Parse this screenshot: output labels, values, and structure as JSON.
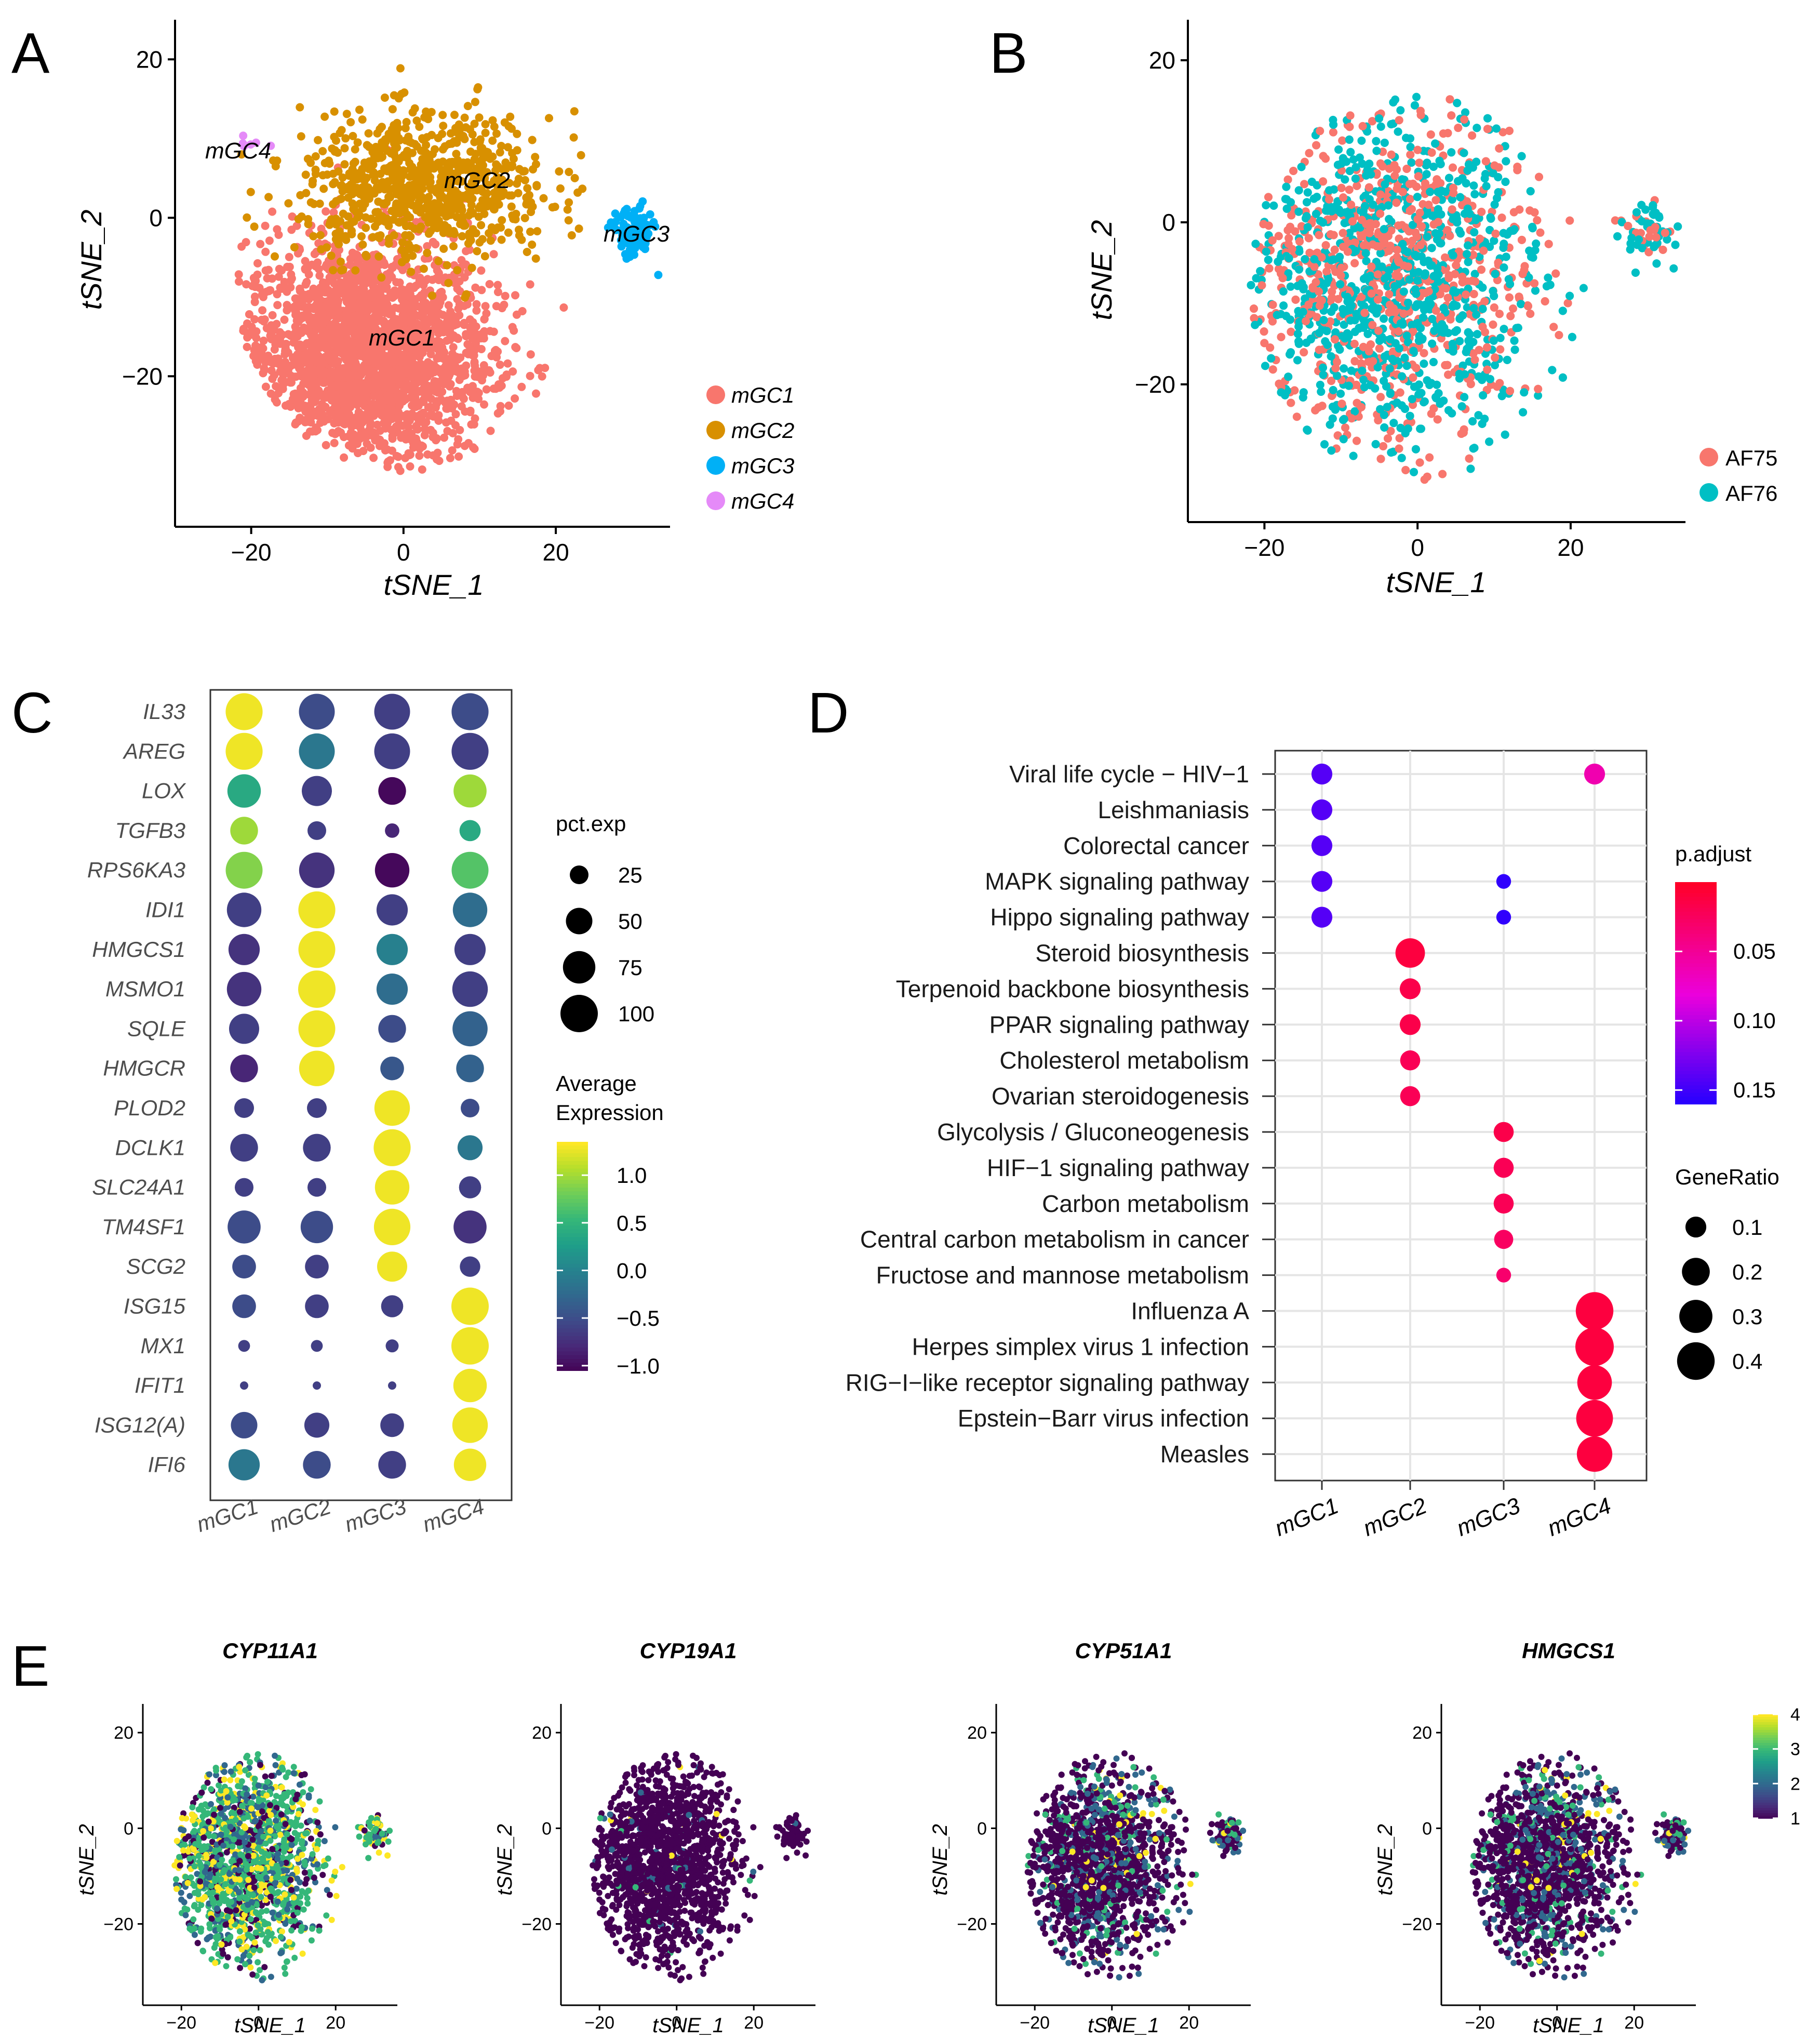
{
  "figure": {
    "panels": [
      "A",
      "B",
      "C",
      "D",
      "E"
    ]
  },
  "chart_data": [
    {
      "id": "A",
      "type": "scatter",
      "title": "",
      "xlabel": "tSNE_1",
      "ylabel": "tSNE_2",
      "xlim": [
        -30,
        35
      ],
      "ylim": [
        -39,
        25
      ],
      "xticks": [
        -20,
        0,
        20
      ],
      "yticks": [
        20,
        0,
        -20
      ],
      "series": [
        {
          "name": "mGC1",
          "color": "#F8766D",
          "center": [
            -5,
            -17
          ],
          "spread": [
            11,
            9.5
          ],
          "n": 2200
        },
        {
          "name": "mGC2",
          "color": "#D89000",
          "center": [
            3,
            4
          ],
          "spread": [
            11,
            6
          ],
          "n": 800
        },
        {
          "name": "mGC3",
          "color": "#00B0F6",
          "center": [
            30,
            -2
          ],
          "spread": [
            1.8,
            2.3
          ],
          "n": 90
        },
        {
          "name": "mGC4",
          "color": "#E58AF8",
          "center": [
            -20,
            9.5
          ],
          "spread": [
            0.8,
            0.6
          ],
          "n": 6
        }
      ],
      "annotations": [
        {
          "text": "mGC4",
          "x": -22,
          "y": 9.5
        },
        {
          "text": "mGC2",
          "x": 10,
          "y": 6
        },
        {
          "text": "mGC3",
          "x": 30,
          "y": -1
        },
        {
          "text": "mGC1",
          "x": 0,
          "y": -14.5
        }
      ],
      "legend": [
        "mGC1",
        "mGC2",
        "mGC3",
        "mGC4"
      ]
    },
    {
      "id": "B",
      "type": "scatter",
      "xlabel": "tSNE_1",
      "ylabel": "tSNE_2",
      "xlim": [
        -30,
        35
      ],
      "ylim": [
        -37,
        25
      ],
      "xticks": [
        -20,
        0,
        20
      ],
      "yticks": [
        20,
        0,
        -20
      ],
      "series": [
        {
          "name": "AF75",
          "color": "#F8766D"
        },
        {
          "name": "AF76",
          "color": "#00BFC4"
        }
      ],
      "legend": [
        "AF75",
        "AF76"
      ]
    },
    {
      "id": "C",
      "type": "scatter",
      "subtype": "dotplot",
      "genes": [
        "IL33",
        "AREG",
        "LOX",
        "TGFB3",
        "RPS6KA3",
        "IDI1",
        "HMGCS1",
        "MSMO1",
        "SQLE",
        "HMGCR",
        "PLOD2",
        "DCLK1",
        "SLC24A1",
        "TM4SF1",
        "SCG2",
        "ISG15",
        "MX1",
        "IFIT1",
        "ISG12(A)",
        "IFI6"
      ],
      "clusters": [
        "mGC1",
        "mGC2",
        "mGC3",
        "mGC4"
      ],
      "avg_expression": [
        [
          1.3,
          -0.5,
          -0.6,
          -0.5
        ],
        [
          1.3,
          -0.1,
          -0.6,
          -0.6
        ],
        [
          0.4,
          -0.6,
          -1.0,
          1.0
        ],
        [
          1.0,
          -0.6,
          -0.8,
          0.4
        ],
        [
          0.9,
          -0.7,
          -1.0,
          0.7
        ],
        [
          -0.6,
          1.3,
          -0.6,
          -0.2
        ],
        [
          -0.7,
          1.3,
          0.0,
          -0.6
        ],
        [
          -0.7,
          1.3,
          -0.2,
          -0.6
        ],
        [
          -0.6,
          1.3,
          -0.5,
          -0.3
        ],
        [
          -0.8,
          1.3,
          -0.4,
          -0.3
        ],
        [
          -0.6,
          -0.6,
          1.3,
          -0.5
        ],
        [
          -0.6,
          -0.6,
          1.3,
          -0.1
        ],
        [
          -0.6,
          -0.6,
          1.3,
          -0.6
        ],
        [
          -0.5,
          -0.5,
          1.3,
          -0.7
        ],
        [
          -0.5,
          -0.6,
          1.3,
          -0.6
        ],
        [
          -0.5,
          -0.6,
          -0.6,
          1.3
        ],
        [
          -0.6,
          -0.6,
          -0.6,
          1.3
        ],
        [
          -0.6,
          -0.6,
          -0.6,
          1.3
        ],
        [
          -0.5,
          -0.6,
          -0.6,
          1.3
        ],
        [
          -0.1,
          -0.5,
          -0.6,
          1.3
        ]
      ],
      "pct_exp": [
        [
          98,
          92,
          92,
          98
        ],
        [
          98,
          92,
          92,
          98
        ],
        [
          80,
          65,
          55,
          78
        ],
        [
          55,
          25,
          15,
          32
        ],
        [
          97,
          90,
          85,
          97
        ],
        [
          85,
          98,
          70,
          85
        ],
        [
          70,
          97,
          70,
          70
        ],
        [
          85,
          100,
          70,
          90
        ],
        [
          65,
          97,
          55,
          88
        ],
        [
          55,
          90,
          40,
          55
        ],
        [
          28,
          28,
          90,
          25
        ],
        [
          55,
          55,
          98,
          45
        ],
        [
          25,
          25,
          85,
          35
        ],
        [
          78,
          75,
          95,
          78
        ],
        [
          40,
          40,
          65,
          30
        ],
        [
          40,
          40,
          35,
          100
        ],
        [
          10,
          10,
          12,
          100
        ],
        [
          5,
          5,
          5,
          80
        ],
        [
          50,
          45,
          40,
          90
        ],
        [
          70,
          55,
          55,
          75
        ]
      ],
      "size_legend_title": "pct.exp",
      "size_legend": [
        25,
        50,
        75,
        100
      ],
      "color_legend_title": [
        "Average",
        "Expression"
      ],
      "color_legend_ticks": [
        1.0,
        0.5,
        0.0,
        -0.5,
        -1.0
      ],
      "color_legend_labels": [
        "1.0",
        "0.5",
        "0.0",
        "−0.5",
        "−1.0"
      ],
      "color_range": [
        -1.05,
        1.35
      ]
    },
    {
      "id": "D",
      "type": "scatter",
      "subtype": "dotplot",
      "pathways": [
        "Viral life cycle − HIV−1",
        "Leishmaniasis",
        "Colorectal cancer",
        "MAPK signaling pathway",
        "Hippo signaling pathway",
        "Steroid biosynthesis",
        "Terpenoid backbone biosynthesis",
        "PPAR signaling pathway",
        "Cholesterol metabolism",
        "Ovarian steroidogenesis",
        "Glycolysis / Gluconeogenesis",
        "HIF−1 signaling pathway",
        "Carbon metabolism",
        "Central carbon metabolism in cancer",
        "Fructose and mannose metabolism",
        "Influenza A",
        "Herpes simplex virus 1 infection",
        "RIG−I−like receptor signaling pathway",
        "Epstein−Barr virus infection",
        "Measles"
      ],
      "clusters": [
        "mGC1",
        "mGC2",
        "mGC3",
        "mGC4"
      ],
      "points": [
        {
          "pathway": 0,
          "cluster": 0,
          "gene_ratio": 0.1,
          "p_adjust": 0.14
        },
        {
          "pathway": 0,
          "cluster": 3,
          "gene_ratio": 0.1,
          "p_adjust": 0.06
        },
        {
          "pathway": 1,
          "cluster": 0,
          "gene_ratio": 0.1,
          "p_adjust": 0.14
        },
        {
          "pathway": 2,
          "cluster": 0,
          "gene_ratio": 0.1,
          "p_adjust": 0.14
        },
        {
          "pathway": 3,
          "cluster": 0,
          "gene_ratio": 0.1,
          "p_adjust": 0.14
        },
        {
          "pathway": 3,
          "cluster": 2,
          "gene_ratio": 0.04,
          "p_adjust": 0.155
        },
        {
          "pathway": 4,
          "cluster": 0,
          "gene_ratio": 0.1,
          "p_adjust": 0.14
        },
        {
          "pathway": 4,
          "cluster": 2,
          "gene_ratio": 0.04,
          "p_adjust": 0.155
        },
        {
          "pathway": 5,
          "cluster": 1,
          "gene_ratio": 0.23,
          "p_adjust": 0.01
        },
        {
          "pathway": 6,
          "cluster": 1,
          "gene_ratio": 0.1,
          "p_adjust": 0.015
        },
        {
          "pathway": 7,
          "cluster": 1,
          "gene_ratio": 0.1,
          "p_adjust": 0.015
        },
        {
          "pathway": 8,
          "cluster": 1,
          "gene_ratio": 0.09,
          "p_adjust": 0.02
        },
        {
          "pathway": 9,
          "cluster": 1,
          "gene_ratio": 0.09,
          "p_adjust": 0.02
        },
        {
          "pathway": 10,
          "cluster": 2,
          "gene_ratio": 0.09,
          "p_adjust": 0.015
        },
        {
          "pathway": 11,
          "cluster": 2,
          "gene_ratio": 0.09,
          "p_adjust": 0.02
        },
        {
          "pathway": 12,
          "cluster": 2,
          "gene_ratio": 0.09,
          "p_adjust": 0.02
        },
        {
          "pathway": 13,
          "cluster": 2,
          "gene_ratio": 0.08,
          "p_adjust": 0.025
        },
        {
          "pathway": 14,
          "cluster": 2,
          "gene_ratio": 0.04,
          "p_adjust": 0.03
        },
        {
          "pathway": 15,
          "cluster": 3,
          "gene_ratio": 0.4,
          "p_adjust": 0.01
        },
        {
          "pathway": 16,
          "cluster": 3,
          "gene_ratio": 0.42,
          "p_adjust": 0.01
        },
        {
          "pathway": 17,
          "cluster": 3,
          "gene_ratio": 0.33,
          "p_adjust": 0.01
        },
        {
          "pathway": 18,
          "cluster": 3,
          "gene_ratio": 0.38,
          "p_adjust": 0.01
        },
        {
          "pathway": 19,
          "cluster": 3,
          "gene_ratio": 0.35,
          "p_adjust": 0.01
        }
      ],
      "color_legend_title": "p.adjust",
      "color_legend_ticks": [
        0.05,
        0.1,
        0.15
      ],
      "color_legend_labels": [
        "0.05",
        "0.10",
        "0.15"
      ],
      "color_range": [
        0.0,
        0.16
      ],
      "size_legend_title": "GeneRatio",
      "size_legend": [
        0.1,
        0.2,
        0.3,
        0.4
      ]
    },
    {
      "id": "E",
      "type": "scatter",
      "subtype": "feature_plots",
      "xlabel": "tSNE_1",
      "ylabel": "tSNE_2",
      "xticks": [
        -20,
        0,
        20
      ],
      "yticks": [
        20,
        0,
        -20
      ],
      "xlim": [
        -30,
        36
      ],
      "ylim": [
        -37,
        26
      ],
      "genes": [
        "CYP11A1",
        "CYP19A1",
        "CYP51A1",
        "HMGCS1"
      ],
      "expression_level": [
        "high-widespread",
        "very-low",
        "low-moderate",
        "low-moderate"
      ],
      "color_legend_ticks": [
        4,
        3,
        2,
        1
      ],
      "color_range": [
        1,
        4
      ]
    }
  ]
}
